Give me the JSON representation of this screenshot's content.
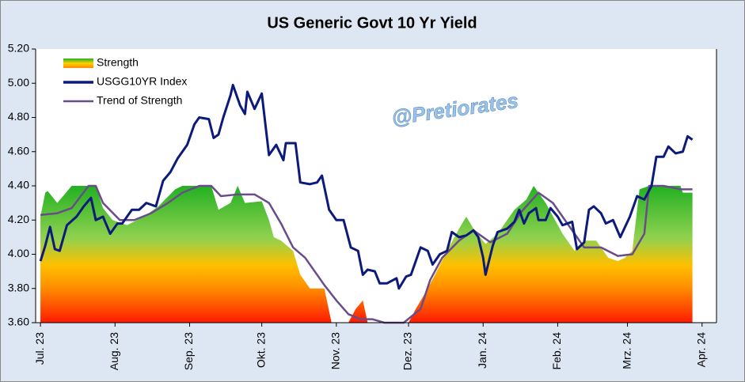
{
  "chart_data": {
    "type": "line",
    "title": "US Generic Govt 10 Yr Yield",
    "watermark": "@Pretiorates",
    "xlim": [
      -2,
      281
    ],
    "xticks": [
      {
        "value": 0,
        "label": "Jul. 23"
      },
      {
        "value": 31,
        "label": "Aug. 23"
      },
      {
        "value": 62,
        "label": "Sep. 23"
      },
      {
        "value": 92,
        "label": "Okt. 23"
      },
      {
        "value": 123,
        "label": "Nov. 23"
      },
      {
        "value": 153,
        "label": "Dez. 23"
      },
      {
        "value": 184,
        "label": "Jan. 24"
      },
      {
        "value": 215,
        "label": "Feb. 24"
      },
      {
        "value": 244,
        "label": "Mrz. 24"
      },
      {
        "value": 275,
        "label": "Apr. 24"
      }
    ],
    "ylim": [
      3.6,
      5.2
    ],
    "yticks": [
      {
        "value": 3.6,
        "label": "3.60"
      },
      {
        "value": 3.8,
        "label": "3.80"
      },
      {
        "value": 4.0,
        "label": "4.00"
      },
      {
        "value": 4.2,
        "label": "4.20"
      },
      {
        "value": 4.4,
        "label": "4.40"
      },
      {
        "value": 4.6,
        "label": "4.60"
      },
      {
        "value": 4.8,
        "label": "4.80"
      },
      {
        "value": 5.0,
        "label": "5.00"
      },
      {
        "value": 5.2,
        "label": "5.20"
      }
    ],
    "legend": "top-left",
    "series": [
      {
        "name": "Strength",
        "kind": "area",
        "color": "#2eb82e",
        "x": [
          0,
          2,
          3,
          7,
          10,
          13,
          23,
          26,
          30,
          36,
          43,
          49,
          56,
          59,
          71,
          74,
          79,
          82,
          85,
          92,
          95,
          97,
          100,
          105,
          108,
          112,
          118,
          121,
          128,
          131,
          134,
          136,
          153,
          156,
          161,
          164,
          169,
          174,
          177,
          180,
          185,
          190,
          197,
          202,
          205,
          210,
          217,
          222,
          226,
          231,
          236,
          240,
          243,
          246,
          249,
          253,
          266,
          267,
          271
        ],
        "values": [
          4.22,
          4.36,
          4.37,
          4.3,
          4.35,
          4.4,
          4.4,
          4.27,
          4.2,
          4.17,
          4.22,
          4.28,
          4.38,
          4.4,
          4.4,
          4.26,
          4.3,
          4.4,
          4.3,
          4.31,
          4.2,
          4.1,
          4.08,
          4.02,
          3.88,
          3.8,
          3.8,
          3.6,
          3.6,
          3.68,
          3.73,
          3.6,
          3.6,
          3.68,
          3.8,
          3.88,
          4.02,
          4.15,
          4.22,
          4.15,
          4.06,
          4.12,
          4.26,
          4.32,
          4.4,
          4.3,
          4.12,
          4.02,
          4.08,
          4.08,
          3.98,
          3.96,
          3.98,
          4.02,
          4.38,
          4.4,
          4.4,
          4.36,
          4.36
        ]
      },
      {
        "name": "USGG10YR Index",
        "kind": "line",
        "color": "#0c1a7a",
        "x": [
          0,
          2,
          4,
          6,
          8,
          11,
          15,
          18,
          21,
          23,
          26,
          29,
          32,
          34,
          38,
          41,
          44,
          48,
          51,
          54,
          57,
          61,
          64,
          66,
          70,
          72,
          74,
          76,
          79,
          80,
          83,
          85,
          86,
          89,
          92,
          95,
          98,
          101,
          102,
          106,
          108,
          112,
          115,
          117,
          120,
          123,
          126,
          129,
          132,
          134,
          136,
          139,
          141,
          144,
          148,
          149,
          152,
          154,
          158,
          161,
          163,
          166,
          169,
          171,
          174,
          177,
          180,
          182,
          184,
          185,
          188,
          190,
          194,
          197,
          199,
          201,
          203,
          206,
          207,
          210,
          212,
          215,
          217,
          221,
          223,
          226,
          228,
          230,
          233,
          235,
          238,
          241,
          245,
          248,
          251,
          254,
          256,
          259,
          261,
          264,
          267,
          269,
          271
        ],
        "values": [
          3.96,
          4.05,
          4.16,
          4.03,
          4.02,
          4.17,
          4.22,
          4.28,
          4.33,
          4.2,
          4.22,
          4.12,
          4.18,
          4.18,
          4.26,
          4.26,
          4.3,
          4.28,
          4.43,
          4.48,
          4.56,
          4.64,
          4.76,
          4.8,
          4.79,
          4.68,
          4.7,
          4.8,
          4.93,
          4.99,
          4.87,
          4.82,
          4.95,
          4.85,
          4.94,
          4.58,
          4.64,
          4.55,
          4.65,
          4.65,
          4.42,
          4.41,
          4.42,
          4.46,
          4.26,
          4.2,
          4.2,
          4.04,
          4.02,
          3.88,
          3.91,
          3.9,
          3.83,
          3.83,
          3.86,
          3.8,
          3.87,
          3.88,
          4.04,
          4.02,
          3.94,
          4.0,
          4.02,
          4.13,
          4.1,
          4.11,
          4.14,
          4.1,
          3.98,
          3.88,
          4.05,
          4.13,
          4.15,
          4.19,
          4.26,
          4.18,
          4.24,
          4.27,
          4.2,
          4.2,
          4.27,
          4.22,
          4.17,
          4.19,
          4.03,
          4.07,
          4.26,
          4.28,
          4.24,
          4.18,
          4.2,
          4.1,
          4.22,
          4.34,
          4.32,
          4.4,
          4.57,
          4.57,
          4.63,
          4.59,
          4.6,
          4.69,
          4.67
        ]
      },
      {
        "name": "Trend of Strength",
        "kind": "line",
        "color": "#6a4c8a",
        "x": [
          0,
          7,
          13,
          20,
          23,
          26,
          33,
          39,
          46,
          53,
          59,
          66,
          71,
          75,
          82,
          89,
          95,
          100,
          105,
          110,
          115,
          118,
          123,
          128,
          133,
          138,
          143,
          151,
          158,
          162,
          167,
          174,
          180,
          187,
          194,
          200,
          207,
          213,
          220,
          226,
          233,
          240,
          246,
          251,
          253,
          259,
          266,
          271
        ],
        "values": [
          4.23,
          4.24,
          4.27,
          4.4,
          4.4,
          4.3,
          4.2,
          4.2,
          4.24,
          4.3,
          4.36,
          4.4,
          4.4,
          4.34,
          4.35,
          4.35,
          4.3,
          4.18,
          4.04,
          3.98,
          3.88,
          3.82,
          3.73,
          3.65,
          3.62,
          3.62,
          3.6,
          3.6,
          3.68,
          3.85,
          3.98,
          4.08,
          4.14,
          4.07,
          4.12,
          4.25,
          4.36,
          4.3,
          4.16,
          4.04,
          4.04,
          3.99,
          4.0,
          4.12,
          4.4,
          4.4,
          4.38,
          4.38
        ]
      }
    ]
  }
}
